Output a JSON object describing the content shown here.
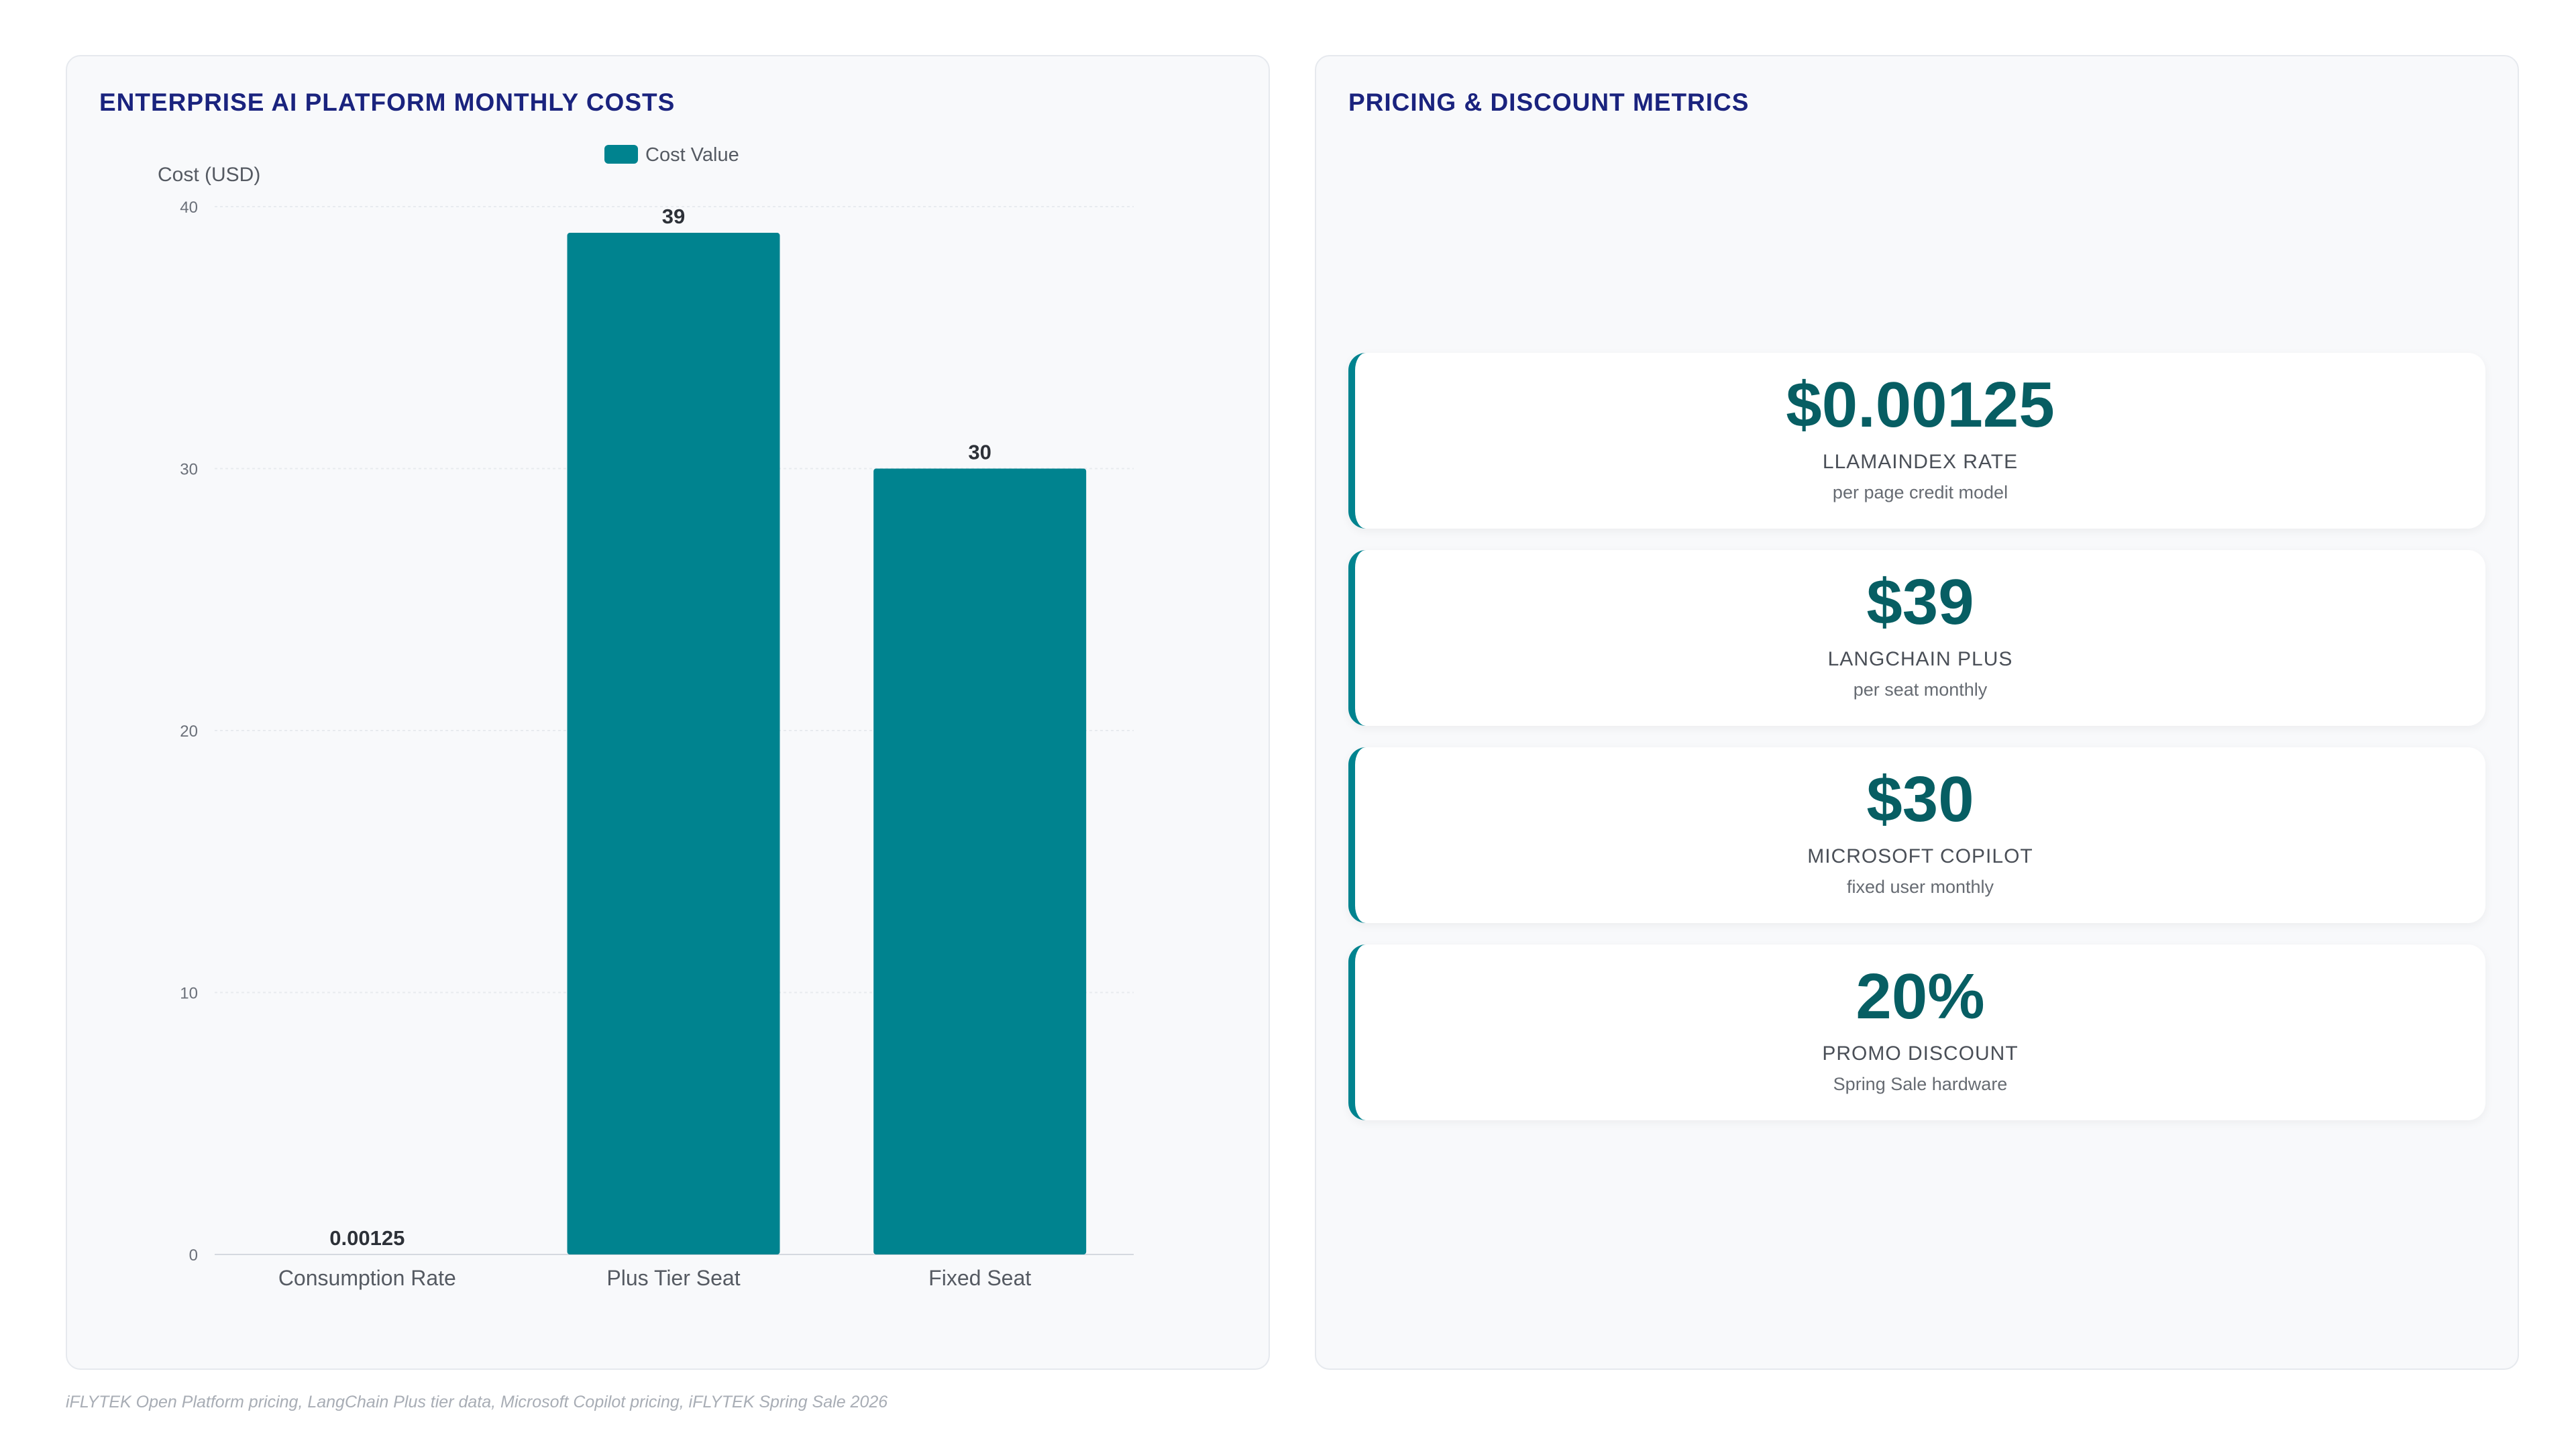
{
  "left_panel": {
    "title": "ENTERPRISE AI PLATFORM MONTHLY COSTS"
  },
  "right_panel": {
    "title": "PRICING & DISCOUNT METRICS",
    "metrics": [
      {
        "value": "$0.00125",
        "label": "LLAMAINDEX RATE",
        "sub": "per page credit model"
      },
      {
        "value": "$39",
        "label": "LANGCHAIN PLUS",
        "sub": "per seat monthly"
      },
      {
        "value": "$30",
        "label": "MICROSOFT COPILOT",
        "sub": "fixed user monthly"
      },
      {
        "value": "20%",
        "label": "PROMO DISCOUNT",
        "sub": "Spring Sale hardware"
      }
    ]
  },
  "source_note": "iFLYTEK Open Platform pricing, LangChain Plus tier data, Microsoft Copilot pricing, iFLYTEK Spring Sale 2026",
  "chart_data": {
    "type": "bar",
    "categories": [
      "Consumption Rate",
      "Plus Tier Seat",
      "Fixed Seat"
    ],
    "series": [
      {
        "name": "Cost Value",
        "values": [
          0.00125,
          39,
          30
        ],
        "labels": [
          "0.00125",
          "39",
          "30"
        ]
      }
    ],
    "ylabel": "Cost (USD)",
    "ylim": [
      0,
      40
    ],
    "yticks": [
      0,
      10,
      20,
      30,
      40
    ],
    "grid": true,
    "legend": "top-center",
    "color": "#00838f"
  }
}
